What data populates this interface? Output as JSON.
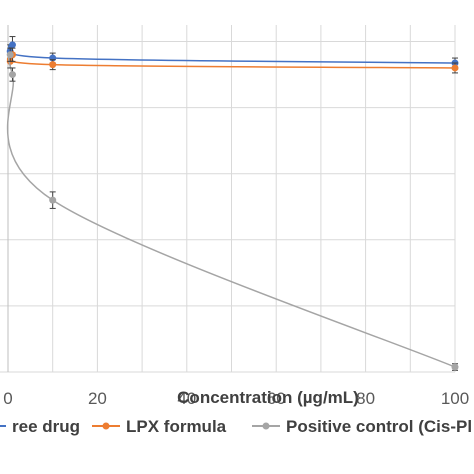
{
  "chart_data": {
    "type": "line",
    "xlabel": "Concentration  (µg/mL)",
    "ylabel": "",
    "xlim": [
      0,
      100
    ],
    "ylim": [
      0,
      105
    ],
    "x_ticks": [
      0,
      20,
      40,
      60,
      80,
      100
    ],
    "grid": "on",
    "legend_position": "bottom",
    "series": [
      {
        "name": "Free drug",
        "legend_label": "ree drug",
        "color": "#4472C4",
        "marker": "circle",
        "x": [
          0.5,
          1,
          10,
          100
        ],
        "y": [
          97,
          99,
          95,
          93.5
        ],
        "err": [
          2,
          2.5,
          1.5,
          1.5
        ]
      },
      {
        "name": "LPX formula",
        "legend_label": "LPX formula",
        "color": "#ED7D31",
        "marker": "circle",
        "x": [
          0.5,
          1,
          10,
          100
        ],
        "y": [
          94,
          96,
          93,
          92
        ],
        "err": [
          2,
          2,
          1.5,
          1.5
        ]
      },
      {
        "name": "Positive control (Cis-Pl",
        "legend_label": "Positive control (Cis-Pl",
        "color": "#A5A5A5",
        "marker": "circle",
        "x": [
          0.5,
          1,
          10,
          100
        ],
        "y": [
          96,
          90,
          52,
          1.5
        ],
        "err": [
          2,
          2,
          2.5,
          1
        ]
      }
    ]
  }
}
